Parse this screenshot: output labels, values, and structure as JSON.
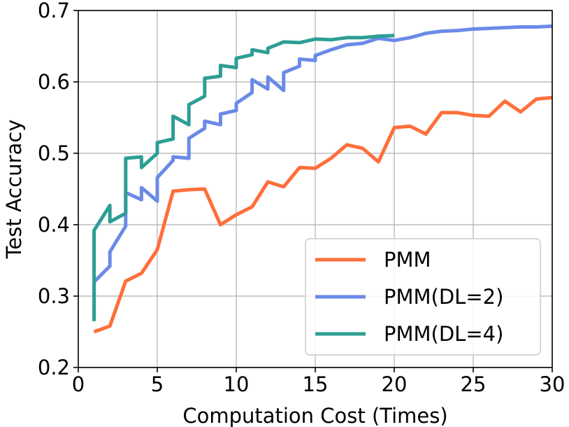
{
  "chart_data": {
    "type": "line",
    "title": "",
    "xlabel": "Computation Cost (Times)",
    "ylabel": "Test Accuracy",
    "xlim": [
      0,
      30
    ],
    "ylim": [
      0.2,
      0.7
    ],
    "xticks": [
      0,
      5,
      10,
      15,
      20,
      25,
      30
    ],
    "yticks": [
      0.2,
      0.3,
      0.4,
      0.5,
      0.6,
      0.7
    ],
    "xtick_labels": [
      "0",
      "5",
      "10",
      "15",
      "20",
      "25",
      "30"
    ],
    "ytick_labels": [
      "0.2",
      "0.3",
      "0.4",
      "0.5",
      "0.6",
      "0.7"
    ],
    "grid": true,
    "legend_position": "lower-right",
    "series": [
      {
        "name": "PMM",
        "color": "#ff6e3a",
        "x": [
          1,
          2,
          3,
          4,
          5,
          6,
          7,
          8,
          9,
          10,
          11,
          12,
          13,
          14,
          15,
          16,
          17,
          18,
          19,
          20,
          21,
          22,
          23,
          24,
          25,
          26,
          27,
          28,
          29,
          30
        ],
        "y": [
          0.25,
          0.258,
          0.321,
          0.332,
          0.365,
          0.447,
          0.449,
          0.45,
          0.4,
          0.414,
          0.425,
          0.46,
          0.453,
          0.48,
          0.479,
          0.493,
          0.512,
          0.507,
          0.488,
          0.536,
          0.538,
          0.527,
          0.557,
          0.557,
          0.553,
          0.552,
          0.573,
          0.558,
          0.576,
          0.578
        ]
      },
      {
        "name": "PMM(DL=2)",
        "color": "#6a8ae8",
        "x": [
          1,
          1,
          2,
          2,
          3,
          3,
          4,
          4,
          5,
          5,
          6,
          6,
          7,
          7,
          8,
          8,
          9,
          9,
          10,
          10,
          11,
          11,
          12,
          12,
          13,
          13,
          14,
          14,
          15,
          15,
          16,
          17,
          18,
          19,
          20,
          21,
          22,
          23,
          24,
          25,
          26,
          27,
          28,
          29,
          30
        ],
        "y": [
          0.3,
          0.32,
          0.342,
          0.362,
          0.398,
          0.445,
          0.435,
          0.452,
          0.433,
          0.466,
          0.49,
          0.495,
          0.493,
          0.521,
          0.535,
          0.545,
          0.54,
          0.555,
          0.56,
          0.57,
          0.585,
          0.603,
          0.59,
          0.607,
          0.588,
          0.613,
          0.622,
          0.632,
          0.63,
          0.637,
          0.645,
          0.652,
          0.654,
          0.661,
          0.658,
          0.662,
          0.668,
          0.671,
          0.672,
          0.674,
          0.675,
          0.676,
          0.677,
          0.677,
          0.678
        ]
      },
      {
        "name": "PMM(DL=4)",
        "color": "#2e9e94",
        "x": [
          1,
          1,
          2,
          2,
          3,
          3,
          4,
          4,
          5,
          5,
          6,
          6,
          7,
          7,
          8,
          8,
          9,
          9,
          10,
          10,
          11,
          11,
          12,
          12,
          13,
          14,
          15,
          16,
          17,
          18,
          19,
          20
        ],
        "y": [
          0.265,
          0.392,
          0.427,
          0.404,
          0.416,
          0.493,
          0.495,
          0.48,
          0.5,
          0.515,
          0.52,
          0.552,
          0.54,
          0.568,
          0.58,
          0.605,
          0.608,
          0.623,
          0.62,
          0.633,
          0.638,
          0.645,
          0.641,
          0.647,
          0.656,
          0.655,
          0.66,
          0.659,
          0.662,
          0.662,
          0.664,
          0.665
        ]
      }
    ]
  }
}
